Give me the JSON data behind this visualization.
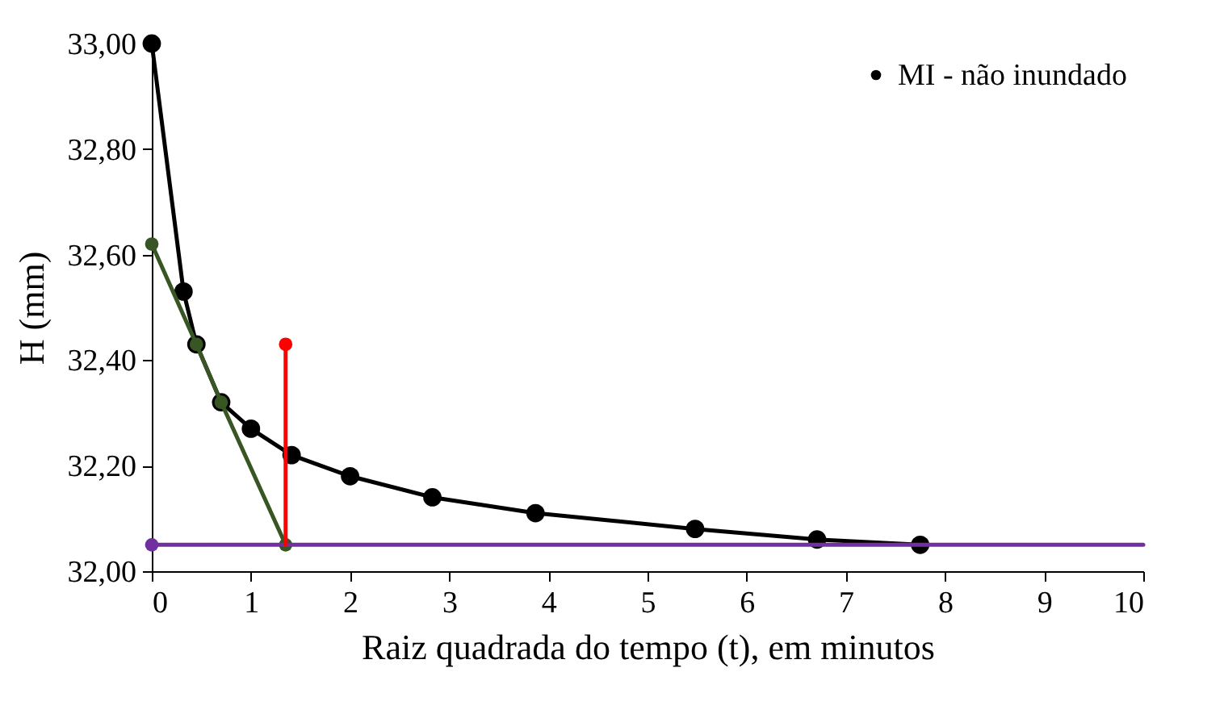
{
  "chart_data": {
    "type": "line",
    "xlabel": "Raiz quadrada do tempo (t), em minutos",
    "ylabel": "H (mm)",
    "xlim": [
      0,
      10
    ],
    "xticks": [
      0,
      1,
      2,
      3,
      4,
      5,
      6,
      7,
      8,
      9,
      10
    ],
    "ylim": [
      32,
      33
    ],
    "yticks": [
      {
        "value": 32,
        "label": "32,00"
      },
      {
        "value": 32.2,
        "label": "32,20"
      },
      {
        "value": 32.4,
        "label": "32,40"
      },
      {
        "value": 32.6,
        "label": "32,60"
      },
      {
        "value": 32.8,
        "label": "32,80"
      },
      {
        "value": 33,
        "label": "33,00"
      }
    ],
    "grid": false,
    "legend": "top right",
    "series": [
      {
        "name": "MI - não inundado",
        "color": "#000000",
        "marker": "circle",
        "x": [
          0,
          0.32,
          0.45,
          0.7,
          1.0,
          1.41,
          2.0,
          2.83,
          3.87,
          5.48,
          6.71,
          7.75
        ],
        "values": [
          33.0,
          32.53,
          32.43,
          32.32,
          32.27,
          32.22,
          32.18,
          32.14,
          32.11,
          32.08,
          32.06,
          32.05
        ]
      },
      {
        "color": "#375623",
        "marker": "circle",
        "x": [
          0,
          0.45,
          0.7,
          1.35
        ],
        "values": [
          32.62,
          32.43,
          32.32,
          32.05
        ]
      },
      {
        "color": "#7030a0",
        "marker": "none",
        "x": [
          0,
          10
        ],
        "values": [
          32.05,
          32.05
        ]
      },
      {
        "type": "scatter",
        "color": "#7030a0",
        "marker": "circle",
        "x": [
          0
        ],
        "values": [
          32.05
        ]
      },
      {
        "color": "#ff0000",
        "marker": "none",
        "x": [
          1.35,
          1.35
        ],
        "values": [
          32.05,
          32.43
        ]
      },
      {
        "type": "scatter",
        "color": "#ff0000",
        "marker": "circle",
        "x": [
          1.35
        ],
        "values": [
          32.43
        ]
      }
    ]
  }
}
